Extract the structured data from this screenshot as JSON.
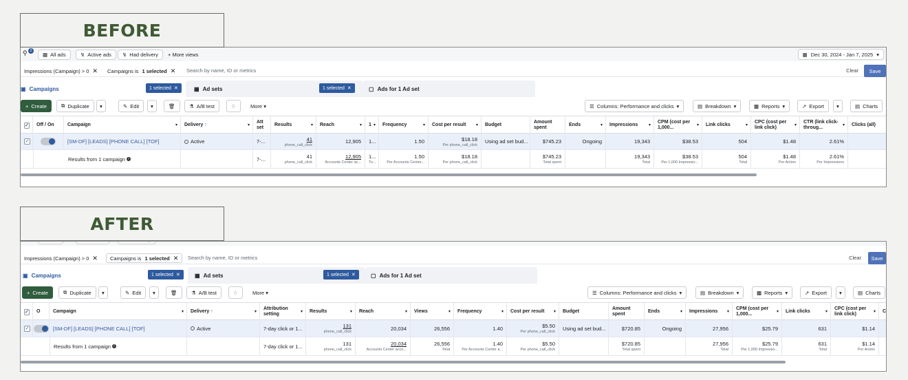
{
  "labels": {
    "before": "BEFORE",
    "after": "AFTER"
  },
  "view_tabs": [
    "All ads",
    "Active ads",
    "Had delivery",
    "More views"
  ],
  "date_range": "Dec 30, 2024 - Jan 7, 2025",
  "search_badge": "2",
  "filters": {
    "chip1": "Impressions (Campaign) > 0",
    "chip2_prefix": "Campaigns is",
    "chip2_bold": "1 selected",
    "search_placeholder": "Search by name, ID or metrics",
    "clear": "Clear",
    "save": "Save"
  },
  "levels": {
    "campaigns": "Campaigns",
    "ad_sets": "Ad sets",
    "ads": "Ads for 1 Ad set",
    "selected": "1 selected"
  },
  "toolbar": {
    "create": "Create",
    "duplicate": "Duplicate",
    "edit": "Edit",
    "ab_test": "A/B test",
    "more": "More",
    "columns": "Columns: Performance and clicks",
    "breakdown": "Breakdown",
    "reports": "Reports",
    "export": "Export",
    "charts": "Charts"
  },
  "before": {
    "headers": {
      "offon": "Off / On",
      "campaign": "Campaign",
      "delivery": "Delivery",
      "attribution": "Att set",
      "results": "Results",
      "reach": "Reach",
      "col1": "1",
      "frequency": "Frequency",
      "cost_per_result": "Cost per result",
      "budget": "Budget",
      "amount_spent": "Amount spent",
      "ends": "Ends",
      "impressions": "Impressions",
      "cpm": "CPM (cost per 1,000...",
      "link_clicks": "Link clicks",
      "cpc": "CPC (cost per link click)",
      "ctr": "CTR (link click-throug...",
      "clicks_all": "Clicks (all)"
    },
    "row": {
      "campaign": "[SM-DF] [LEADS] [PHONE CALL] [TOF]",
      "delivery": "Active",
      "attribution": "7-...",
      "results": "41",
      "results_sub": "phone_call_click",
      "reach": "12,905",
      "col1": "1...",
      "frequency": "1.50",
      "cost_per_result": "$18.18",
      "cost_sub": "Per phone_call_click",
      "budget": "Using ad set bud...",
      "amount_spent": "$745.23",
      "ends": "Ongoing",
      "impressions": "19,343",
      "cpm": "$38.53",
      "link_clicks": "504",
      "cpc": "$1.48",
      "ctr": "2.61%"
    },
    "summary": {
      "label": "Results from 1 campaign",
      "attribution": "7-...",
      "results": "41",
      "results_sub": "phone_call_click",
      "reach": "12,905",
      "reach_sub": "Accounts Center ac...",
      "col1": "1...",
      "col1_sub": "To...",
      "frequency": "1.50",
      "frequency_sub": "Per Accounts Center...",
      "cost_per_result": "$18.18",
      "cost_sub": "Per phone_call_click",
      "amount_spent": "$745.23",
      "amount_sub": "Total spent",
      "impressions": "19,343",
      "impressions_sub": "Total",
      "cpm": "$38.53",
      "cpm_sub": "Per 1,000 Impressio...",
      "link_clicks": "504",
      "link_sub": "Total",
      "cpc": "$1.48",
      "cpc_sub": "Per Action",
      "ctr": "2.61%",
      "ctr_sub": "Per Impressions"
    }
  },
  "after": {
    "headers": {
      "offon": "O",
      "campaign": "Campaign",
      "delivery": "Delivery",
      "attribution": "Attribution setting",
      "results": "Results",
      "reach": "Reach",
      "views": "Views",
      "frequency": "Frequency",
      "cost_per_result": "Cost per result",
      "budget": "Budget",
      "amount_spent": "Amount spent",
      "ends": "Ends",
      "impressions": "Impressions",
      "cpm": "CPM (cost per 1,000...",
      "link_clicks": "Link clicks",
      "cpc": "CPC (cost per link click)",
      "c": "C"
    },
    "row": {
      "campaign": "[SM-DF] [LEADS] [PHONE CALL] [TOF]",
      "delivery": "Active",
      "attribution": "7-day click or 1...",
      "results": "131",
      "results_sub": "phone_call_click",
      "reach": "20,034",
      "views": "26,556",
      "frequency": "1.40",
      "cost_per_result": "$5.50",
      "cost_sub": "Per phone_call_click",
      "budget": "Using ad set bud...",
      "amount_spent": "$720.85",
      "ends": "Ongoing",
      "impressions": "27,956",
      "cpm": "$25.79",
      "link_clicks": "631",
      "cpc": "$1.14"
    },
    "summary": {
      "label": "Results from 1 campaign",
      "attribution": "7-day click or 1...",
      "results": "131",
      "results_sub": "phone_call_click",
      "reach": "20,034",
      "reach_sub": "Accounts Center acco...",
      "views": "26,556",
      "views_sub": "Total",
      "frequency": "1.40",
      "frequency_sub": "Per Accounts Center a...",
      "cost_per_result": "$5.50",
      "cost_sub": "Per phone_call_click",
      "amount_spent": "$720.85",
      "amount_sub": "Total spent",
      "impressions": "27,956",
      "impressions_sub": "Total",
      "cpm": "$25.79",
      "cpm_sub": "Per 1,000 Impressio...",
      "link_clicks": "631",
      "link_sub": "Total",
      "cpc": "$1.14",
      "cpc_sub": "Per Action"
    }
  }
}
